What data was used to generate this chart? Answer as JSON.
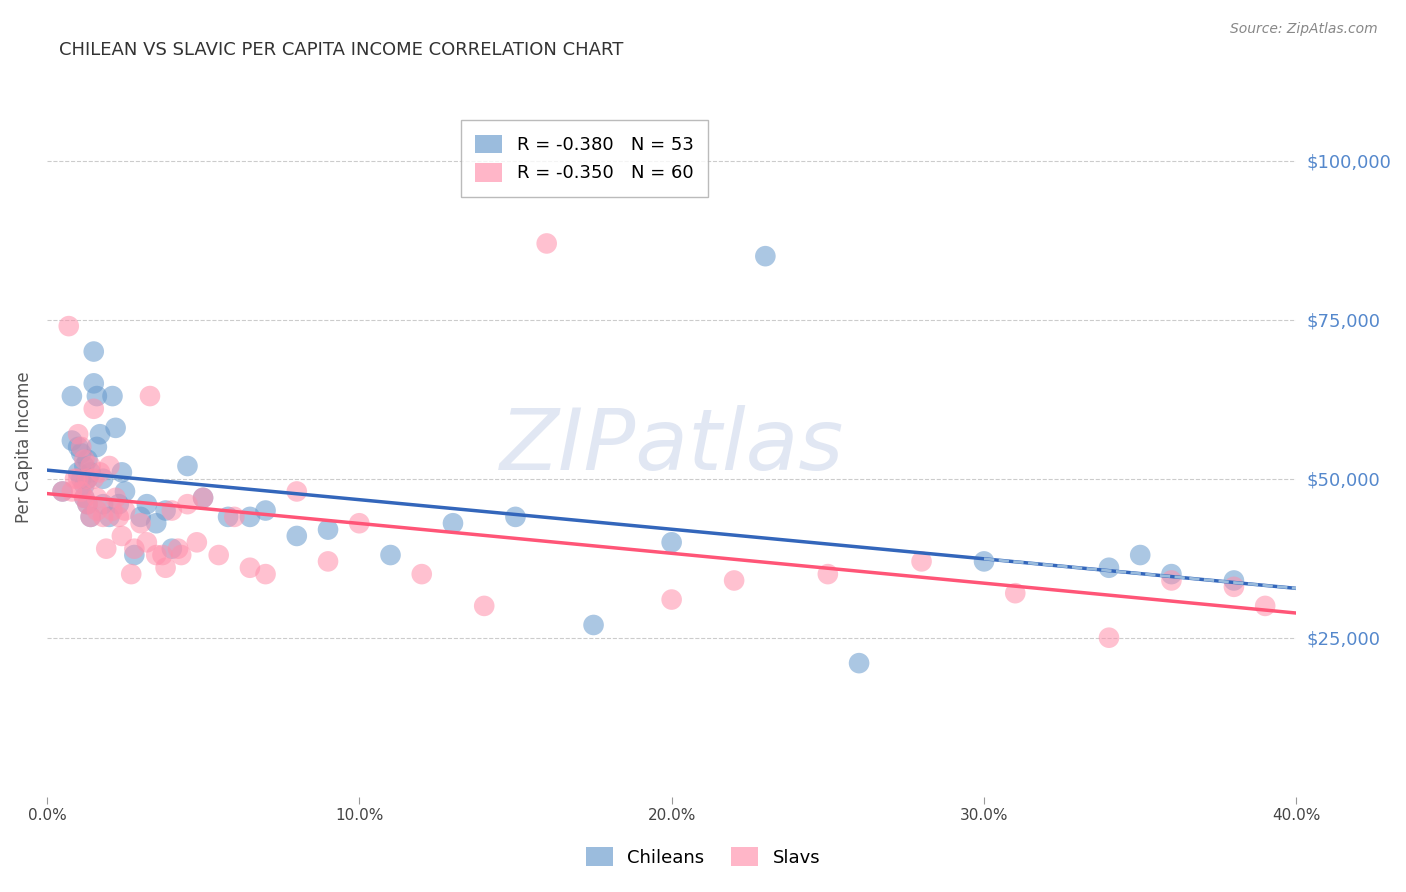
{
  "title": "CHILEAN VS SLAVIC PER CAPITA INCOME CORRELATION CHART",
  "source": "Source: ZipAtlas.com",
  "xlabel": "",
  "ylabel": "Per Capita Income",
  "xlim": [
    0.0,
    0.4
  ],
  "ylim": [
    0,
    110000
  ],
  "yticks": [
    25000,
    50000,
    75000,
    100000
  ],
  "ytick_labels": [
    "$25,000",
    "$50,000",
    "$75,000",
    "$100,000"
  ],
  "xticks": [
    0.0,
    0.1,
    0.2,
    0.3,
    0.4
  ],
  "xtick_labels": [
    "0.0%",
    "10.0%",
    "20.0%",
    "30.0%",
    "40.0%"
  ],
  "chilean_x": [
    0.005,
    0.008,
    0.008,
    0.01,
    0.01,
    0.011,
    0.011,
    0.012,
    0.012,
    0.012,
    0.013,
    0.013,
    0.013,
    0.014,
    0.014,
    0.015,
    0.015,
    0.016,
    0.016,
    0.017,
    0.018,
    0.018,
    0.02,
    0.021,
    0.022,
    0.023,
    0.024,
    0.025,
    0.028,
    0.03,
    0.032,
    0.035,
    0.038,
    0.04,
    0.045,
    0.05,
    0.058,
    0.065,
    0.07,
    0.08,
    0.09,
    0.11,
    0.13,
    0.15,
    0.175,
    0.2,
    0.23,
    0.26,
    0.3,
    0.34,
    0.35,
    0.36,
    0.38
  ],
  "chilean_y": [
    48000,
    63000,
    56000,
    55000,
    51000,
    54000,
    50000,
    52000,
    49000,
    47000,
    53000,
    50000,
    46000,
    51000,
    44000,
    70000,
    65000,
    55000,
    63000,
    57000,
    50000,
    46000,
    44000,
    63000,
    58000,
    46000,
    51000,
    48000,
    38000,
    44000,
    46000,
    43000,
    45000,
    39000,
    52000,
    47000,
    44000,
    44000,
    45000,
    41000,
    42000,
    38000,
    43000,
    44000,
    27000,
    40000,
    85000,
    21000,
    37000,
    36000,
    38000,
    35000,
    34000
  ],
  "slav_x": [
    0.005,
    0.007,
    0.008,
    0.009,
    0.01,
    0.01,
    0.011,
    0.011,
    0.012,
    0.012,
    0.013,
    0.013,
    0.014,
    0.014,
    0.015,
    0.015,
    0.016,
    0.016,
    0.017,
    0.018,
    0.019,
    0.02,
    0.021,
    0.022,
    0.023,
    0.024,
    0.025,
    0.027,
    0.028,
    0.03,
    0.032,
    0.033,
    0.035,
    0.037,
    0.038,
    0.04,
    0.042,
    0.043,
    0.045,
    0.048,
    0.05,
    0.055,
    0.06,
    0.065,
    0.07,
    0.08,
    0.09,
    0.1,
    0.12,
    0.14,
    0.16,
    0.2,
    0.22,
    0.25,
    0.28,
    0.31,
    0.34,
    0.36,
    0.38,
    0.39
  ],
  "slav_y": [
    48000,
    74000,
    48000,
    50000,
    50000,
    57000,
    55000,
    48000,
    53000,
    47000,
    50000,
    46000,
    52000,
    44000,
    50000,
    61000,
    47000,
    45000,
    51000,
    44000,
    39000,
    52000,
    45000,
    47000,
    44000,
    41000,
    45000,
    35000,
    39000,
    43000,
    40000,
    63000,
    38000,
    38000,
    36000,
    45000,
    39000,
    38000,
    46000,
    40000,
    47000,
    38000,
    44000,
    36000,
    35000,
    48000,
    37000,
    43000,
    35000,
    30000,
    87000,
    31000,
    34000,
    35000,
    37000,
    32000,
    25000,
    34000,
    33000,
    30000
  ],
  "chilean_R": -0.38,
  "chilean_N": 53,
  "slav_R": -0.35,
  "slav_N": 60,
  "chilean_color": "#6699CC",
  "slav_color": "#FF8FAB",
  "chilean_line_color": "#3366BB",
  "slav_line_color": "#FF5577",
  "dashed_line_color": "#99BBDD",
  "grid_color": "#CCCCCC",
  "ytick_color": "#5588CC",
  "title_color": "#333333",
  "watermark_text": "ZIPatlas",
  "watermark_color": "#AABBDD",
  "background_color": "#FFFFFF"
}
